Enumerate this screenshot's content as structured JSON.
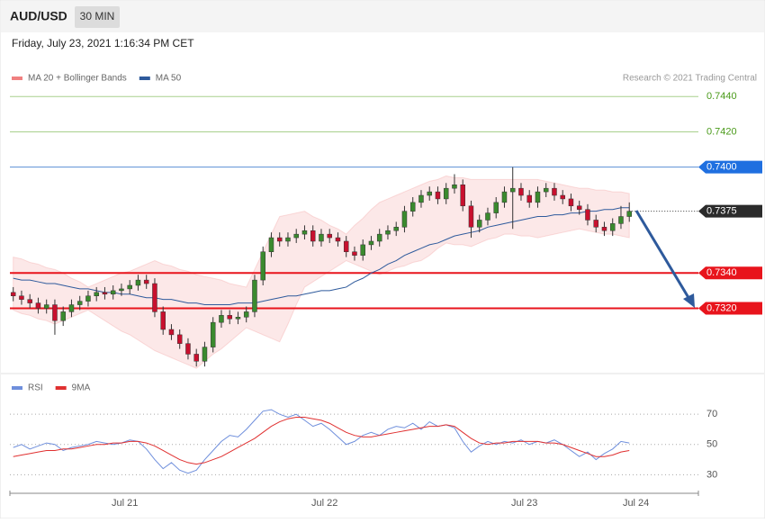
{
  "header": {
    "symbol": "AUD/USD",
    "interval": "30 MIN"
  },
  "timestamp": "Friday, July 23, 2021 1:16:34 PM CET",
  "credit": "Research © 2021 Trading Central",
  "chart_data": [
    {
      "type": "candlestick",
      "xlim": [
        -0.4,
        82.3
      ],
      "ylim": [
        0.7283,
        0.7459
      ],
      "up_color": "#3a8a2e",
      "down_color": "#c8102e",
      "open": [
        0.7329,
        0.7327,
        0.7325,
        0.7323,
        0.732,
        0.7322,
        0.7313,
        0.7318,
        0.7322,
        0.7324,
        0.7327,
        0.7329,
        0.7328,
        0.733,
        0.7331,
        0.7333,
        0.7336,
        0.7334,
        0.7318,
        0.7308,
        0.7305,
        0.73,
        0.7294,
        0.729,
        0.7298,
        0.7312,
        0.7316,
        0.7314,
        0.7315,
        0.7318,
        0.7336,
        0.7352,
        0.736,
        0.7358,
        0.736,
        0.7362,
        0.7364,
        0.7358,
        0.7362,
        0.736,
        0.7358,
        0.7352,
        0.735,
        0.7356,
        0.7358,
        0.7362,
        0.7364,
        0.7366,
        0.7375,
        0.738,
        0.7384,
        0.7386,
        0.7382,
        0.7388,
        0.739,
        0.7378,
        0.7366,
        0.737,
        0.7374,
        0.738,
        0.7386,
        0.7388,
        0.7384,
        0.738,
        0.7386,
        0.7388,
        0.7384,
        0.7382,
        0.7378,
        0.7376,
        0.737,
        0.7366,
        0.7364,
        0.7368,
        0.7372
      ],
      "high": [
        0.7332,
        0.733,
        0.7328,
        0.7326,
        0.7325,
        0.7325,
        0.7321,
        0.7325,
        0.7327,
        0.733,
        0.7332,
        0.7332,
        0.7333,
        0.7334,
        0.7336,
        0.7339,
        0.7339,
        0.7337,
        0.7321,
        0.7311,
        0.7308,
        0.7303,
        0.7297,
        0.7301,
        0.7315,
        0.7319,
        0.7319,
        0.7318,
        0.7321,
        0.7339,
        0.7355,
        0.7363,
        0.7363,
        0.7363,
        0.7365,
        0.7367,
        0.7367,
        0.7365,
        0.7365,
        0.7363,
        0.7361,
        0.7355,
        0.7359,
        0.7361,
        0.7365,
        0.7367,
        0.7369,
        0.7378,
        0.7383,
        0.7387,
        0.7389,
        0.7389,
        0.7391,
        0.7396,
        0.7393,
        0.7381,
        0.7373,
        0.7377,
        0.7383,
        0.7389,
        0.74,
        0.7391,
        0.7387,
        0.7389,
        0.7391,
        0.7391,
        0.7387,
        0.7385,
        0.7381,
        0.7379,
        0.7373,
        0.7369,
        0.7371,
        0.7378,
        0.738
      ],
      "low": [
        0.7324,
        0.7322,
        0.732,
        0.7317,
        0.7317,
        0.7305,
        0.731,
        0.7315,
        0.7319,
        0.7321,
        0.7324,
        0.7325,
        0.7325,
        0.7327,
        0.7328,
        0.733,
        0.7331,
        0.7315,
        0.7305,
        0.7302,
        0.7297,
        0.7291,
        0.7287,
        0.7287,
        0.7295,
        0.7309,
        0.7311,
        0.7311,
        0.7312,
        0.7315,
        0.7333,
        0.7349,
        0.7355,
        0.7355,
        0.7357,
        0.7359,
        0.7355,
        0.7355,
        0.7357,
        0.7355,
        0.7349,
        0.7347,
        0.7347,
        0.7353,
        0.7355,
        0.7359,
        0.7361,
        0.7363,
        0.7372,
        0.7377,
        0.7381,
        0.7379,
        0.7379,
        0.7385,
        0.7375,
        0.736,
        0.7363,
        0.7367,
        0.7371,
        0.7377,
        0.7365,
        0.7381,
        0.7377,
        0.7377,
        0.7383,
        0.7381,
        0.7379,
        0.7375,
        0.7373,
        0.7367,
        0.7363,
        0.7361,
        0.7361,
        0.7365,
        0.7369
      ],
      "close": [
        0.7327,
        0.7325,
        0.7323,
        0.732,
        0.7322,
        0.7313,
        0.7318,
        0.7322,
        0.7324,
        0.7327,
        0.7329,
        0.7328,
        0.733,
        0.7331,
        0.7333,
        0.7336,
        0.7334,
        0.7318,
        0.7308,
        0.7305,
        0.73,
        0.7294,
        0.729,
        0.7298,
        0.7312,
        0.7316,
        0.7314,
        0.7315,
        0.7318,
        0.7336,
        0.7352,
        0.736,
        0.7358,
        0.736,
        0.7362,
        0.7364,
        0.7358,
        0.7362,
        0.736,
        0.7358,
        0.7352,
        0.735,
        0.7356,
        0.7358,
        0.7362,
        0.7364,
        0.7366,
        0.7375,
        0.738,
        0.7384,
        0.7386,
        0.7382,
        0.7388,
        0.739,
        0.7378,
        0.7366,
        0.737,
        0.7374,
        0.738,
        0.7386,
        0.7388,
        0.7384,
        0.738,
        0.7386,
        0.7388,
        0.7384,
        0.7382,
        0.7378,
        0.7376,
        0.737,
        0.7366,
        0.7364,
        0.7368,
        0.7372,
        0.7375
      ],
      "series": [
        {
          "name": "MA 20 + Bollinger Bands",
          "color": "#f08080",
          "upper": [
            0.7349,
            0.7348,
            0.7346,
            0.7345,
            0.7343,
            0.7342,
            0.734,
            0.7337,
            0.7335,
            0.7332,
            0.7334,
            0.7336,
            0.7338,
            0.734,
            0.7341,
            0.7343,
            0.7345,
            0.7347,
            0.7345,
            0.7344,
            0.7342,
            0.7341,
            0.7339,
            0.7338,
            0.7337,
            0.7336,
            0.7334,
            0.7333,
            0.7332,
            0.7342,
            0.7352,
            0.7362,
            0.7372,
            0.7373,
            0.7374,
            0.7375,
            0.7372,
            0.737,
            0.7367,
            0.7365,
            0.7362,
            0.7367,
            0.7371,
            0.7376,
            0.738,
            0.7382,
            0.7384,
            0.7386,
            0.7388,
            0.739,
            0.7392,
            0.7393,
            0.7395,
            0.7394,
            0.7394,
            0.7393,
            0.7393,
            0.7393,
            0.7393,
            0.7393,
            0.7393,
            0.7393,
            0.7393,
            0.7393,
            0.7392,
            0.7391,
            0.739,
            0.7389,
            0.7388,
            0.7388,
            0.7387,
            0.7387,
            0.7386,
            0.7386,
            0.7385
          ],
          "lower": [
            0.7319,
            0.7317,
            0.7316,
            0.7314,
            0.7313,
            0.7311,
            0.7313,
            0.7315,
            0.7317,
            0.7319,
            0.7316,
            0.7313,
            0.731,
            0.7307,
            0.7305,
            0.7302,
            0.7299,
            0.7296,
            0.7294,
            0.7292,
            0.729,
            0.7288,
            0.7286,
            0.729,
            0.7294,
            0.7297,
            0.7301,
            0.7305,
            0.7309,
            0.7307,
            0.7305,
            0.7303,
            0.7301,
            0.7311,
            0.7322,
            0.7332,
            0.7335,
            0.7338,
            0.7341,
            0.7344,
            0.7347,
            0.7345,
            0.7343,
            0.7341,
            0.7339,
            0.7341,
            0.7343,
            0.7344,
            0.7346,
            0.7347,
            0.735,
            0.7354,
            0.7357,
            0.7356,
            0.7356,
            0.7355,
            0.7357,
            0.7359,
            0.736,
            0.7362,
            0.7362,
            0.7361,
            0.7361,
            0.736,
            0.7361,
            0.7362,
            0.7363,
            0.7364,
            0.7365,
            0.7364,
            0.7363,
            0.7362,
            0.7362,
            0.7361,
            0.736
          ]
        },
        {
          "name": "MA 50",
          "color": "#2e5a9c",
          "values": [
            0.7337,
            0.7336,
            0.7336,
            0.7335,
            0.7334,
            0.7334,
            0.7333,
            0.7332,
            0.7331,
            0.7331,
            0.733,
            0.7329,
            0.7329,
            0.7328,
            0.7328,
            0.7327,
            0.7326,
            0.7326,
            0.7325,
            0.7325,
            0.7324,
            0.7323,
            0.7323,
            0.7322,
            0.7322,
            0.7322,
            0.7322,
            0.7323,
            0.7323,
            0.7323,
            0.7324,
            0.7325,
            0.7326,
            0.7327,
            0.7327,
            0.7328,
            0.7329,
            0.733,
            0.733,
            0.7331,
            0.7332,
            0.7335,
            0.7337,
            0.734,
            0.7342,
            0.7345,
            0.7347,
            0.735,
            0.7352,
            0.7354,
            0.7356,
            0.7357,
            0.7359,
            0.7361,
            0.7362,
            0.7363,
            0.7364,
            0.7366,
            0.7367,
            0.7368,
            0.7369,
            0.737,
            0.7371,
            0.7372,
            0.7372,
            0.7373,
            0.7373,
            0.7374,
            0.7374,
            0.7375,
            0.7375,
            0.7376,
            0.7376,
            0.7377,
            0.7377
          ]
        }
      ],
      "levels": [
        {
          "value": 0.744,
          "label": "0.7440",
          "color": "#a8d08d",
          "text_color": "#4a9a1a",
          "box": false
        },
        {
          "value": 0.742,
          "label": "0.7420",
          "color": "#a8d08d",
          "text_color": "#4a9a1a",
          "box": false
        },
        {
          "value": 0.74,
          "label": "0.7400",
          "color": "#5b8fd6",
          "text_color": "#ffffff",
          "box": "#1f6fe0"
        },
        {
          "value": 0.7375,
          "label": "0.7375",
          "color": "#333333",
          "text_color": "#ffffff",
          "box": "#2b2b2b",
          "dotted": true
        },
        {
          "value": 0.734,
          "label": "0.7340",
          "color": "#e8141c",
          "text_color": "#ffffff",
          "box": "#e8141c"
        },
        {
          "value": 0.732,
          "label": "0.7320",
          "color": "#e8141c",
          "text_color": "#ffffff",
          "box": "#e8141c"
        }
      ]
    },
    {
      "type": "line",
      "xlim": [
        -0.4,
        82.3
      ],
      "ylim": [
        19.5,
        82
      ],
      "yticks": [
        70,
        50,
        30
      ],
      "xticks": [
        {
          "value": 13.4,
          "label": "Jul 21"
        },
        {
          "value": 37.4,
          "label": "Jul 22"
        },
        {
          "value": 61.4,
          "label": "Jul 23"
        },
        {
          "value": 74.8,
          "label": "Jul 24"
        }
      ],
      "series": [
        {
          "name": "RSI",
          "color": "#6f8fdc",
          "values": [
            48,
            50,
            47,
            49,
            51,
            50,
            46,
            48,
            49,
            50,
            52,
            51,
            50,
            51,
            53,
            52,
            47,
            40,
            34,
            38,
            33,
            31,
            33,
            40,
            46,
            52,
            56,
            55,
            60,
            66,
            72,
            73,
            70,
            68,
            70,
            66,
            62,
            64,
            60,
            55,
            50,
            52,
            56,
            58,
            56,
            60,
            62,
            61,
            64,
            60,
            65,
            62,
            63,
            61,
            52,
            45,
            49,
            52,
            50,
            52,
            51,
            53,
            50,
            52,
            51,
            53,
            50,
            46,
            42,
            45,
            40,
            44,
            47,
            52,
            51
          ]
        },
        {
          "name": "9MA",
          "color": "#e03030",
          "values": [
            42,
            43,
            44,
            45,
            46,
            46,
            47,
            47,
            48,
            49,
            50,
            50,
            51,
            51,
            52,
            52,
            51,
            49,
            46,
            43,
            40,
            38,
            37,
            38,
            40,
            42,
            45,
            48,
            51,
            54,
            58,
            62,
            65,
            67,
            68,
            68,
            67,
            66,
            64,
            61,
            58,
            56,
            55,
            55,
            56,
            57,
            58,
            59,
            60,
            61,
            62,
            62,
            63,
            62,
            58,
            54,
            51,
            50,
            51,
            51,
            52,
            52,
            52,
            52,
            51,
            51,
            50,
            48,
            46,
            44,
            42,
            42,
            43,
            45,
            46
          ]
        }
      ]
    }
  ]
}
